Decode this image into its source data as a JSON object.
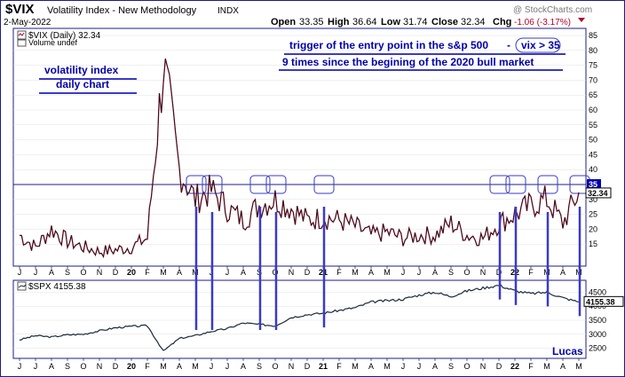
{
  "header": {
    "symbol": "$VIX",
    "name": "Volatility Index - New Methodology",
    "exchange": "INDX",
    "date": "2-May-2022",
    "open_label": "Open",
    "open": "33.35",
    "high_label": "High",
    "high": "36.64",
    "low_label": "Low",
    "low": "31.74",
    "close_label": "Close",
    "close": "32.34",
    "chg_label": "Chg",
    "chg": "-1.06 (-3.17%)",
    "watermark": "@ StockCharts.com"
  },
  "colors": {
    "border": "#1c1c8a",
    "panel_bg": "#ffffff",
    "vix_line": "#1a1a1a",
    "vix_down": "#b3002d",
    "spx_line": "#1a2a3a",
    "annotation": "#3a3ac8",
    "label_box": "#0000aa",
    "grid": "#e0e0e0"
  },
  "annotations": {
    "title_line1": "volatility index",
    "title_line2": "daily chart",
    "note_line1": "trigger of the entry point in the s&p 500",
    "note_dash": "-",
    "note_vix": "vix > 35",
    "note_line2": "9 times since the begining of the 2020 bull market",
    "author": "Lucas"
  },
  "chart_data": [
    {
      "type": "line",
      "series": [
        {
          "name": "$VIX (Daily)",
          "last": "32.34"
        }
      ],
      "volume_label": "Volume undef",
      "ylim": [
        10,
        85
      ],
      "y_ticks": [
        15,
        20,
        25,
        30,
        35,
        40,
        45,
        50,
        55,
        60,
        65,
        70,
        75,
        80,
        85
      ],
      "reference_line": 35,
      "reference_label": "35",
      "last_value_label": "32.34",
      "x": [
        "2019-06",
        "2019-07",
        "2019-08",
        "2019-09",
        "2019-10",
        "2019-11",
        "2019-12",
        "2020-01",
        "2020-02",
        "2020-03",
        "2020-04",
        "2020-05",
        "2020-06",
        "2020-07",
        "2020-08",
        "2020-09",
        "2020-10",
        "2020-11",
        "2020-12",
        "2021-01",
        "2021-02",
        "2021-03",
        "2021-04",
        "2021-05",
        "2021-06",
        "2021-07",
        "2021-08",
        "2021-09",
        "2021-10",
        "2021-11",
        "2021-12",
        "2022-01",
        "2022-02",
        "2022-03",
        "2022-04",
        "2022-05"
      ],
      "y": [
        18,
        14,
        20,
        16,
        14,
        12.5,
        13,
        14,
        17,
        75,
        40,
        30,
        33,
        27,
        23,
        28,
        30,
        27,
        23,
        24,
        23,
        21,
        18,
        19,
        17,
        18,
        18,
        22,
        18,
        17,
        22,
        25,
        28,
        30,
        22,
        32.34
      ],
      "triggers": [
        "2020-05",
        "2020-06",
        "2020-09",
        "2020-10",
        "2021-01",
        "2021-12",
        "2022-01",
        "2022-03",
        "2022-05"
      ],
      "x_tick_labels": [
        "J",
        "J",
        "A",
        "S",
        "O",
        "N",
        "D",
        "20",
        "F",
        "M",
        "A",
        "M",
        "J",
        "J",
        "A",
        "S",
        "O",
        "N",
        "D",
        "21",
        "F",
        "M",
        "A",
        "M",
        "J",
        "J",
        "A",
        "S",
        "O",
        "N",
        "D",
        "22",
        "F",
        "M",
        "A",
        "M"
      ]
    },
    {
      "type": "line",
      "series": [
        {
          "name": "$SPX",
          "last": "4155.38"
        }
      ],
      "ylim": [
        2200,
        4800
      ],
      "y_ticks": [
        2500,
        3000,
        3500,
        4000,
        4500
      ],
      "last_value_label": "4155.38",
      "x": [
        "2019-06",
        "2019-07",
        "2019-08",
        "2019-09",
        "2019-10",
        "2019-11",
        "2019-12",
        "2020-01",
        "2020-02",
        "2020-03",
        "2020-04",
        "2020-05",
        "2020-06",
        "2020-07",
        "2020-08",
        "2020-09",
        "2020-10",
        "2020-11",
        "2020-12",
        "2021-01",
        "2021-02",
        "2021-03",
        "2021-04",
        "2021-05",
        "2021-06",
        "2021-07",
        "2021-08",
        "2021-09",
        "2021-10",
        "2021-11",
        "2021-12",
        "2022-01",
        "2022-02",
        "2022-03",
        "2022-04",
        "2022-05"
      ],
      "y": [
        2800,
        2950,
        2900,
        2980,
        3000,
        3120,
        3230,
        3280,
        3300,
        2400,
        2850,
        2950,
        3100,
        3200,
        3400,
        3350,
        3300,
        3600,
        3700,
        3750,
        3850,
        3950,
        4150,
        4200,
        4250,
        4400,
        4500,
        4350,
        4550,
        4650,
        4750,
        4550,
        4450,
        4500,
        4300,
        4155.38
      ],
      "x_tick_labels": [
        "J",
        "J",
        "A",
        "S",
        "O",
        "N",
        "D",
        "20",
        "F",
        "M",
        "A",
        "M",
        "J",
        "J",
        "A",
        "S",
        "O",
        "N",
        "D",
        "21",
        "F",
        "M",
        "A",
        "M",
        "J",
        "J",
        "A",
        "S",
        "O",
        "N",
        "D",
        "22",
        "F",
        "M",
        "A",
        "M"
      ]
    }
  ]
}
